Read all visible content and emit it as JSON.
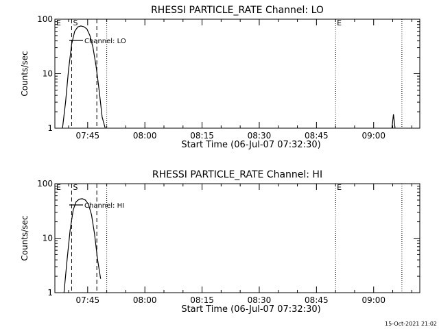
{
  "timestamp": "15-Oct-2021 21:02",
  "chart_data": [
    {
      "type": "line",
      "title": "RHESSI PARTICLE_RATE Channel: LO",
      "xlabel": "Start Time (06-Jul-07 07:32:30)",
      "ylabel": "Counts/sec",
      "y_scale": "log",
      "ylim": [
        1,
        100
      ],
      "xlim": [
        "07:36:24",
        "09:12:06"
      ],
      "x_ticks": [
        "07:45",
        "08:00",
        "08:15",
        "08:30",
        "08:45",
        "09:00"
      ],
      "y_ticks": [
        "1",
        "10",
        "100"
      ],
      "grid": false,
      "legend_position": "top-left",
      "series": [
        {
          "name": "Channel: LO",
          "x": [
            "07:38:24",
            "07:39:12",
            "07:40:00",
            "07:40:48",
            "07:41:36",
            "07:42:24",
            "07:43:12",
            "07:44:00",
            "07:44:48",
            "07:45:36",
            "07:46:24",
            "07:47:12",
            "07:48:00",
            "07:48:48",
            "07:49:36"
          ],
          "y": [
            1,
            3,
            12,
            35,
            60,
            72,
            75,
            73,
            66,
            50,
            30,
            14,
            5,
            1.6,
            1
          ],
          "segments": [
            {
              "x": [
                "09:04:48",
                "09:05:12",
                "09:05:36"
              ],
              "y": [
                1,
                1.8,
                1
              ]
            }
          ]
        }
      ],
      "annotations": [
        {
          "text": "E",
          "x": "07:36:24",
          "line": "none"
        },
        {
          "text": "S",
          "x": "07:40:48",
          "line": "dashed"
        },
        {
          "text": "",
          "x": "07:47:24",
          "line": "dashed"
        },
        {
          "text": "",
          "x": "07:50:00",
          "line": "dotted"
        },
        {
          "text": "E",
          "x": "08:50:00",
          "line": "dotted"
        },
        {
          "text": "",
          "x": "09:07:24",
          "line": "dotted"
        }
      ]
    },
    {
      "type": "line",
      "title": "RHESSI PARTICLE_RATE Channel: HI",
      "xlabel": "Start Time (06-Jul-07 07:32:30)",
      "ylabel": "Counts/sec",
      "y_scale": "log",
      "ylim": [
        1,
        100
      ],
      "xlim": [
        "07:36:24",
        "09:12:06"
      ],
      "x_ticks": [
        "07:45",
        "08:00",
        "08:15",
        "08:30",
        "08:45",
        "09:00"
      ],
      "y_ticks": [
        "1",
        "10",
        "100"
      ],
      "grid": false,
      "legend_position": "top-left",
      "series": [
        {
          "name": "Channel: HI",
          "x": [
            "07:38:48",
            "07:39:36",
            "07:40:24",
            "07:41:12",
            "07:42:00",
            "07:42:48",
            "07:43:36",
            "07:44:24",
            "07:45:12",
            "07:46:00",
            "07:46:48",
            "07:47:36",
            "07:48:24"
          ],
          "y": [
            1,
            4,
            14,
            33,
            47,
            52,
            53,
            50,
            42,
            27,
            12,
            4,
            1.8
          ],
          "segments": []
        }
      ],
      "annotations": [
        {
          "text": "E",
          "x": "07:36:24",
          "line": "none"
        },
        {
          "text": "S",
          "x": "07:40:48",
          "line": "dashed"
        },
        {
          "text": "",
          "x": "07:47:24",
          "line": "dashed"
        },
        {
          "text": "",
          "x": "07:50:00",
          "line": "dotted"
        },
        {
          "text": "E",
          "x": "08:50:00",
          "line": "dotted"
        },
        {
          "text": "",
          "x": "09:07:24",
          "line": "dotted"
        }
      ]
    }
  ]
}
